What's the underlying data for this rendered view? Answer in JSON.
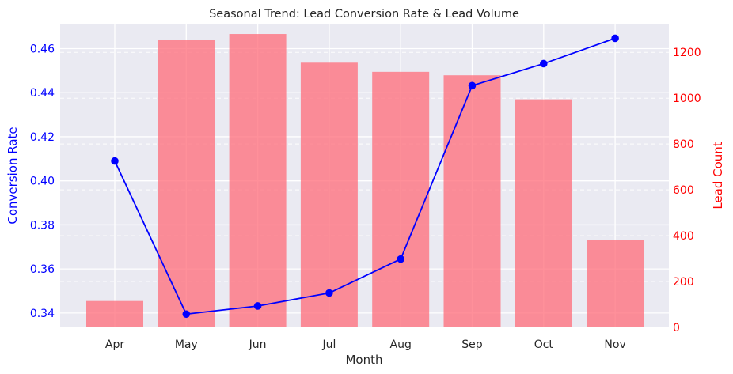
{
  "chart_data": {
    "type": "bar+line",
    "title": "Seasonal Trend: Lead Conversion Rate & Lead Volume",
    "xlabel": "Month",
    "categories": [
      "Apr",
      "May",
      "Jun",
      "Jul",
      "Aug",
      "Sep",
      "Oct",
      "Nov"
    ],
    "left_axis": {
      "label": "Conversion Rate",
      "color": "#0000ff",
      "ylim": [
        0.3335,
        0.4713
      ],
      "ticks": [
        "0.34",
        "0.36",
        "0.38",
        "0.40",
        "0.42",
        "0.44",
        "0.46"
      ]
    },
    "right_axis": {
      "label": "Lead Count",
      "color": "#ff0000",
      "ylim": [
        0,
        1325
      ],
      "ticks": [
        "0",
        "200",
        "400",
        "600",
        "800",
        "1000",
        "1200"
      ]
    },
    "series": [
      {
        "type": "bar",
        "axis": "right",
        "color": "#ff6b78",
        "opacity": 0.75,
        "values": [
          115,
          1255,
          1280,
          1155,
          1115,
          1100,
          995,
          380
        ]
      },
      {
        "type": "line",
        "axis": "left",
        "color": "#0000ff",
        "marker": "circle",
        "values": [
          0.409,
          0.3395,
          0.3432,
          0.3491,
          0.3645,
          0.4432,
          0.4532,
          0.4647
        ]
      }
    ],
    "background": "#eaeaf2",
    "grid": true
  }
}
